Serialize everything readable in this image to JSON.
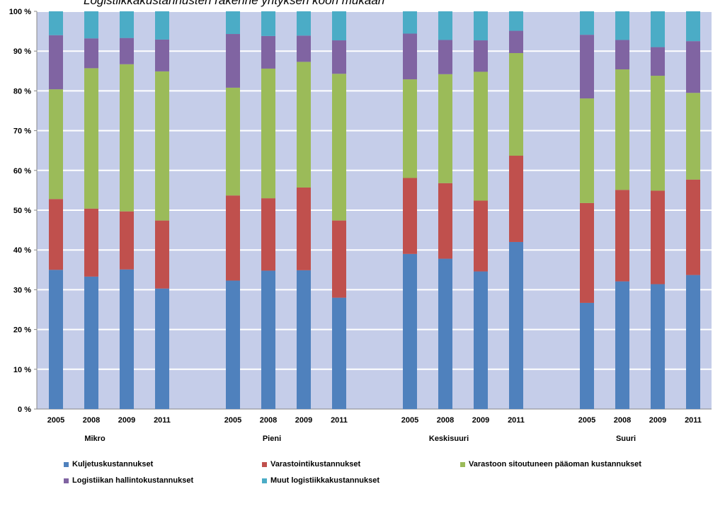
{
  "chart_data": {
    "type": "bar",
    "stacked": true,
    "title": "Logistiikkakustannusten rakenne yrityksen koon mukaan",
    "ylim": [
      0,
      100
    ],
    "y_ticks": [
      "0 %",
      "10 %",
      "20 %",
      "30 %",
      "40 %",
      "50 %",
      "60 %",
      "70 %",
      "80 %",
      "90 %",
      "100 %"
    ],
    "groups": [
      {
        "name": "Mikro",
        "years": [
          "2005",
          "2008",
          "2009",
          "2011"
        ]
      },
      {
        "name": "Pieni",
        "years": [
          "2005",
          "2008",
          "2009",
          "2011"
        ]
      },
      {
        "name": "Keskisuuri",
        "years": [
          "2005",
          "2008",
          "2009",
          "2011"
        ]
      },
      {
        "name": "Suuri",
        "years": [
          "2005",
          "2008",
          "2009",
          "2011"
        ]
      }
    ],
    "series": [
      {
        "name": "Kuljetuskustannukset",
        "color": "#4f81bd",
        "values": [
          35,
          33.3,
          35.1,
          30.3,
          32.3,
          34.8,
          34.9,
          28,
          39,
          37.8,
          34.6,
          42,
          26.7,
          32.1,
          31.4,
          33.7
        ]
      },
      {
        "name": "Varastointikustannukset",
        "color": "#c0504d",
        "values": [
          17.8,
          17.1,
          14.6,
          17.1,
          21.4,
          18.2,
          20.8,
          19.4,
          19.1,
          19,
          17.8,
          21.7,
          25.1,
          23,
          23.5,
          24
        ]
      },
      {
        "name": "Varastoon sitoutuneen pääoman kustannukset",
        "color": "#9bbb59",
        "values": [
          27.6,
          35.3,
          37,
          37.5,
          27.1,
          32.6,
          31.6,
          36.9,
          24.8,
          27.4,
          32.4,
          25.8,
          26.3,
          30.3,
          28.9,
          21.8
        ]
      },
      {
        "name": "Logistiikan hallintokustannukset",
        "color": "#8064a2",
        "values": [
          13.6,
          7.5,
          6.6,
          8,
          13.5,
          8.2,
          6.6,
          8.4,
          11.5,
          8.6,
          7.9,
          5.6,
          16,
          7.4,
          7.2,
          13
        ]
      },
      {
        "name": "Muut logistiikkakustannukset",
        "color": "#4bacc6",
        "values": [
          6,
          6.8,
          6.7,
          7.1,
          5.7,
          6.2,
          6.1,
          7.3,
          5.6,
          7.2,
          7.3,
          4.9,
          5.9,
          7.2,
          9,
          7.5
        ]
      }
    ],
    "legend_position": "bottom",
    "grid": true
  }
}
